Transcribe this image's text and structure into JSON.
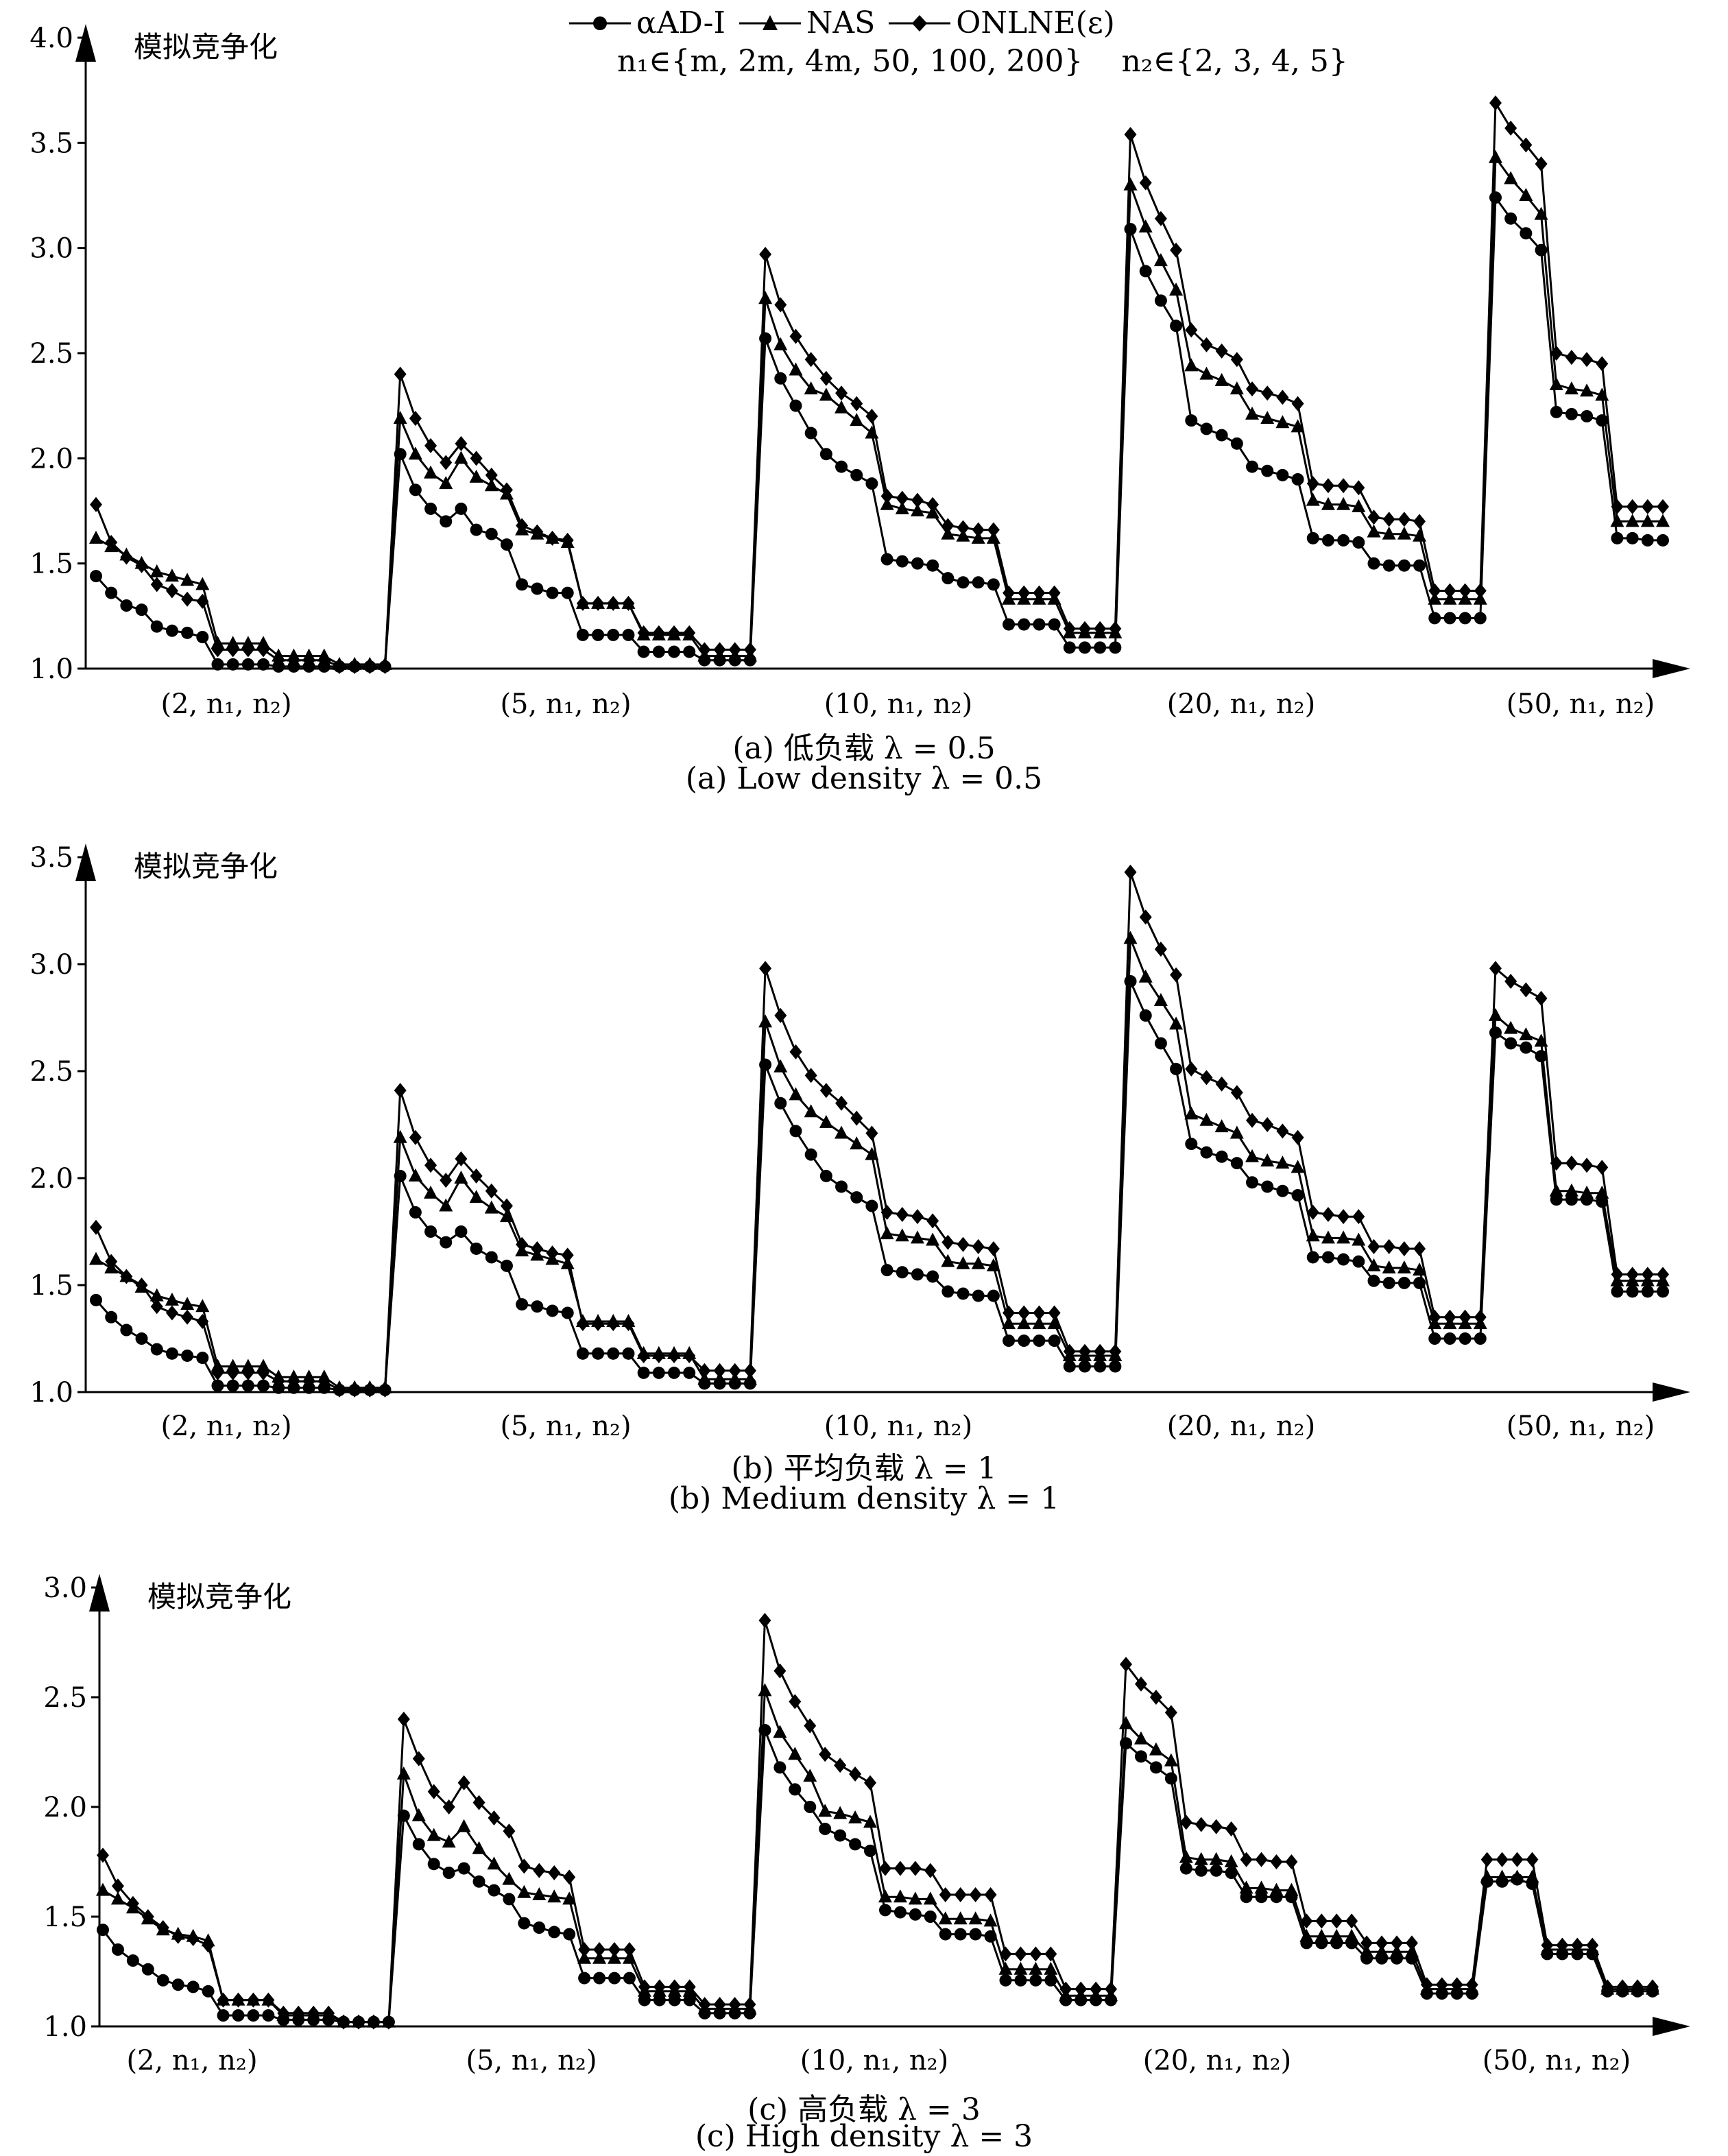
{
  "legend": {
    "items": [
      {
        "label": "αAD-I",
        "marker": "circle"
      },
      {
        "label": "NAS",
        "marker": "triangle"
      },
      {
        "label": "ONLNE(ε)",
        "marker": "diamond"
      }
    ],
    "n1_set": "n₁∈{m, 2m, 4m, 50, 100, 200}",
    "n2_set": "n₂∈{2, 3, 4, 5}"
  },
  "chart_data": [
    {
      "type": "line",
      "ylabel": "模拟竞争化",
      "ylim": [
        1.0,
        4.0
      ],
      "yticks": [
        "1.0",
        "1.5",
        "2.0",
        "2.5",
        "3.0",
        "3.5",
        "4.0"
      ],
      "group_labels": [
        "(2, n₁, n₂)",
        "(5, n₁, n₂)",
        "(10, n₁, n₂)",
        "(20, n₁, n₂)",
        "(50, n₁, n₂)"
      ],
      "caption_cn": "(a) 低负载 λ = 0.5",
      "caption_en": "(a) Low density λ = 0.5",
      "series": [
        {
          "name": "αAD-I",
          "values": [
            1.44,
            1.36,
            1.3,
            1.28,
            1.2,
            1.18,
            1.17,
            1.15,
            1.02,
            1.02,
            1.02,
            1.02,
            1.01,
            1.01,
            1.01,
            1.01,
            1.01,
            1.01,
            1.01,
            1.01,
            2.02,
            1.85,
            1.76,
            1.7,
            1.76,
            1.66,
            1.64,
            1.59,
            1.4,
            1.38,
            1.36,
            1.36,
            1.16,
            1.16,
            1.16,
            1.16,
            1.08,
            1.08,
            1.08,
            1.08,
            1.04,
            1.04,
            1.04,
            1.04,
            2.57,
            2.38,
            2.25,
            2.12,
            2.02,
            1.96,
            1.92,
            1.88,
            1.52,
            1.51,
            1.5,
            1.49,
            1.43,
            1.41,
            1.41,
            1.4,
            1.21,
            1.21,
            1.21,
            1.21,
            1.1,
            1.1,
            1.1,
            1.1,
            3.09,
            2.89,
            2.75,
            2.63,
            2.18,
            2.14,
            2.11,
            2.07,
            1.96,
            1.94,
            1.92,
            1.9,
            1.62,
            1.61,
            1.61,
            1.6,
            1.5,
            1.49,
            1.49,
            1.49,
            1.24,
            1.24,
            1.24,
            1.24,
            3.24,
            3.14,
            3.07,
            2.99,
            2.22,
            2.21,
            2.2,
            2.18,
            1.62,
            1.62,
            1.61,
            1.61
          ]
        },
        {
          "name": "NAS",
          "values": [
            1.62,
            1.58,
            1.54,
            1.5,
            1.46,
            1.44,
            1.42,
            1.4,
            1.12,
            1.12,
            1.12,
            1.12,
            1.06,
            1.06,
            1.06,
            1.06,
            1.02,
            1.02,
            1.02,
            1.02,
            2.19,
            2.02,
            1.93,
            1.88,
            2.0,
            1.91,
            1.87,
            1.83,
            1.66,
            1.64,
            1.62,
            1.6,
            1.31,
            1.31,
            1.31,
            1.31,
            1.16,
            1.16,
            1.16,
            1.16,
            1.06,
            1.06,
            1.06,
            1.06,
            2.76,
            2.54,
            2.42,
            2.33,
            2.3,
            2.24,
            2.18,
            2.12,
            1.78,
            1.76,
            1.75,
            1.74,
            1.64,
            1.63,
            1.62,
            1.62,
            1.33,
            1.33,
            1.33,
            1.33,
            1.17,
            1.17,
            1.17,
            1.17,
            3.3,
            3.1,
            2.94,
            2.8,
            2.44,
            2.4,
            2.37,
            2.33,
            2.21,
            2.19,
            2.17,
            2.15,
            1.8,
            1.78,
            1.78,
            1.77,
            1.65,
            1.64,
            1.64,
            1.63,
            1.33,
            1.33,
            1.33,
            1.33,
            3.43,
            3.33,
            3.25,
            3.16,
            2.35,
            2.33,
            2.32,
            2.3,
            1.7,
            1.7,
            1.7,
            1.7
          ]
        },
        {
          "name": "ONLNE(ε)",
          "values": [
            1.78,
            1.6,
            1.53,
            1.49,
            1.4,
            1.37,
            1.33,
            1.32,
            1.09,
            1.09,
            1.09,
            1.09,
            1.04,
            1.04,
            1.04,
            1.04,
            1.01,
            1.01,
            1.01,
            1.01,
            2.4,
            2.19,
            2.06,
            1.98,
            2.07,
            2.0,
            1.92,
            1.85,
            1.68,
            1.65,
            1.62,
            1.61,
            1.31,
            1.31,
            1.31,
            1.31,
            1.17,
            1.17,
            1.17,
            1.17,
            1.09,
            1.09,
            1.09,
            1.09,
            2.97,
            2.73,
            2.58,
            2.47,
            2.38,
            2.31,
            2.26,
            2.2,
            1.82,
            1.81,
            1.8,
            1.78,
            1.68,
            1.67,
            1.66,
            1.66,
            1.36,
            1.36,
            1.36,
            1.36,
            1.19,
            1.19,
            1.19,
            1.19,
            3.54,
            3.31,
            3.14,
            2.99,
            2.61,
            2.54,
            2.51,
            2.47,
            2.33,
            2.31,
            2.29,
            2.26,
            1.88,
            1.87,
            1.87,
            1.86,
            1.72,
            1.71,
            1.71,
            1.7,
            1.37,
            1.37,
            1.37,
            1.37,
            3.69,
            3.57,
            3.49,
            3.4,
            2.5,
            2.48,
            2.47,
            2.45,
            1.77,
            1.77,
            1.77,
            1.77
          ]
        }
      ]
    },
    {
      "type": "line",
      "ylabel": "模拟竞争化",
      "ylim": [
        1.0,
        3.5
      ],
      "yticks": [
        "1.0",
        "1.5",
        "2.0",
        "2.5",
        "3.0",
        "3.5"
      ],
      "group_labels": [
        "(2, n₁, n₂)",
        "(5, n₁, n₂)",
        "(10, n₁, n₂)",
        "(20, n₁, n₂)",
        "(50, n₁, n₂)"
      ],
      "caption_cn": "(b) 平均负载 λ = 1",
      "caption_en": "(b) Medium density λ = 1",
      "series": [
        {
          "name": "αAD-I",
          "values": [
            1.43,
            1.35,
            1.29,
            1.25,
            1.2,
            1.18,
            1.17,
            1.16,
            1.03,
            1.03,
            1.03,
            1.03,
            1.02,
            1.02,
            1.02,
            1.02,
            1.01,
            1.01,
            1.01,
            1.01,
            2.01,
            1.84,
            1.75,
            1.7,
            1.75,
            1.67,
            1.63,
            1.59,
            1.41,
            1.4,
            1.38,
            1.37,
            1.18,
            1.18,
            1.18,
            1.18,
            1.09,
            1.09,
            1.09,
            1.09,
            1.04,
            1.04,
            1.04,
            1.04,
            2.53,
            2.35,
            2.22,
            2.11,
            2.01,
            1.96,
            1.91,
            1.87,
            1.57,
            1.56,
            1.55,
            1.54,
            1.47,
            1.46,
            1.45,
            1.45,
            1.24,
            1.24,
            1.24,
            1.24,
            1.12,
            1.12,
            1.12,
            1.12,
            2.92,
            2.76,
            2.63,
            2.51,
            2.16,
            2.12,
            2.1,
            2.07,
            1.98,
            1.96,
            1.94,
            1.92,
            1.63,
            1.63,
            1.62,
            1.61,
            1.52,
            1.51,
            1.51,
            1.51,
            1.25,
            1.25,
            1.25,
            1.25,
            2.68,
            2.63,
            2.61,
            2.57,
            1.9,
            1.9,
            1.9,
            1.89,
            1.47,
            1.47,
            1.47,
            1.47
          ]
        },
        {
          "name": "NAS",
          "values": [
            1.62,
            1.58,
            1.54,
            1.49,
            1.45,
            1.43,
            1.41,
            1.4,
            1.12,
            1.12,
            1.12,
            1.12,
            1.07,
            1.07,
            1.07,
            1.07,
            1.02,
            1.02,
            1.02,
            1.02,
            2.19,
            2.01,
            1.93,
            1.87,
            2.0,
            1.91,
            1.86,
            1.82,
            1.66,
            1.64,
            1.62,
            1.6,
            1.33,
            1.33,
            1.33,
            1.33,
            1.18,
            1.18,
            1.18,
            1.18,
            1.06,
            1.06,
            1.06,
            1.06,
            2.73,
            2.52,
            2.39,
            2.31,
            2.26,
            2.21,
            2.16,
            2.11,
            1.74,
            1.73,
            1.72,
            1.71,
            1.61,
            1.6,
            1.6,
            1.59,
            1.32,
            1.32,
            1.32,
            1.32,
            1.17,
            1.17,
            1.17,
            1.17,
            3.12,
            2.94,
            2.83,
            2.72,
            2.3,
            2.27,
            2.24,
            2.21,
            2.1,
            2.08,
            2.07,
            2.05,
            1.73,
            1.72,
            1.72,
            1.71,
            1.59,
            1.58,
            1.58,
            1.57,
            1.32,
            1.32,
            1.32,
            1.32,
            2.76,
            2.7,
            2.67,
            2.64,
            1.94,
            1.94,
            1.93,
            1.93,
            1.52,
            1.52,
            1.52,
            1.52
          ]
        },
        {
          "name": "ONLNE(ε)",
          "values": [
            1.77,
            1.61,
            1.54,
            1.5,
            1.4,
            1.37,
            1.35,
            1.33,
            1.09,
            1.09,
            1.09,
            1.09,
            1.05,
            1.05,
            1.05,
            1.05,
            1.01,
            1.01,
            1.01,
            1.01,
            2.41,
            2.19,
            2.06,
            1.99,
            2.09,
            2.01,
            1.94,
            1.87,
            1.69,
            1.67,
            1.65,
            1.64,
            1.32,
            1.32,
            1.32,
            1.32,
            1.17,
            1.17,
            1.17,
            1.17,
            1.1,
            1.1,
            1.1,
            1.1,
            2.98,
            2.76,
            2.59,
            2.48,
            2.41,
            2.35,
            2.28,
            2.21,
            1.84,
            1.83,
            1.82,
            1.8,
            1.7,
            1.69,
            1.68,
            1.67,
            1.37,
            1.37,
            1.37,
            1.37,
            1.19,
            1.19,
            1.19,
            1.19,
            3.43,
            3.22,
            3.07,
            2.95,
            2.51,
            2.47,
            2.44,
            2.4,
            2.27,
            2.25,
            2.22,
            2.19,
            1.84,
            1.83,
            1.82,
            1.82,
            1.68,
            1.68,
            1.67,
            1.67,
            1.35,
            1.35,
            1.35,
            1.35,
            2.98,
            2.92,
            2.88,
            2.84,
            2.07,
            2.07,
            2.06,
            2.05,
            1.55,
            1.55,
            1.55,
            1.55
          ]
        }
      ]
    },
    {
      "type": "line",
      "ylabel": "模拟竞争化",
      "ylim": [
        1.0,
        3.0
      ],
      "yticks": [
        "1.0",
        "1.5",
        "2.0",
        "2.5",
        "3.0"
      ],
      "group_labels": [
        "(2, n₁, n₂)",
        "(5, n₁, n₂)",
        "(10, n₁, n₂)",
        "(20, n₁, n₂)",
        "(50, n₁, n₂)"
      ],
      "caption_cn": "(c) 高负载 λ = 3",
      "caption_en": "(c) High density λ = 3",
      "series": [
        {
          "name": "αAD-I",
          "values": [
            1.44,
            1.35,
            1.3,
            1.26,
            1.21,
            1.19,
            1.18,
            1.16,
            1.05,
            1.05,
            1.05,
            1.05,
            1.03,
            1.03,
            1.03,
            1.03,
            1.02,
            1.02,
            1.02,
            1.02,
            1.96,
            1.83,
            1.74,
            1.7,
            1.72,
            1.66,
            1.62,
            1.58,
            1.47,
            1.45,
            1.43,
            1.42,
            1.22,
            1.22,
            1.22,
            1.22,
            1.12,
            1.12,
            1.12,
            1.12,
            1.06,
            1.06,
            1.06,
            1.06,
            2.35,
            2.18,
            2.08,
            2.0,
            1.9,
            1.87,
            1.83,
            1.8,
            1.53,
            1.52,
            1.51,
            1.5,
            1.42,
            1.42,
            1.42,
            1.41,
            1.21,
            1.21,
            1.21,
            1.21,
            1.12,
            1.12,
            1.12,
            1.12,
            2.29,
            2.23,
            2.18,
            2.13,
            1.72,
            1.71,
            1.71,
            1.7,
            1.59,
            1.59,
            1.59,
            1.59,
            1.38,
            1.38,
            1.38,
            1.38,
            1.31,
            1.31,
            1.31,
            1.31,
            1.15,
            1.15,
            1.15,
            1.15,
            1.66,
            1.66,
            1.67,
            1.65,
            1.33,
            1.33,
            1.33,
            1.33,
            1.16,
            1.16,
            1.16,
            1.16
          ]
        },
        {
          "name": "NAS",
          "values": [
            1.62,
            1.58,
            1.54,
            1.49,
            1.44,
            1.42,
            1.41,
            1.39,
            1.12,
            1.12,
            1.12,
            1.12,
            1.05,
            1.05,
            1.05,
            1.05,
            1.02,
            1.02,
            1.02,
            1.02,
            2.15,
            1.96,
            1.87,
            1.84,
            1.91,
            1.81,
            1.74,
            1.67,
            1.61,
            1.6,
            1.59,
            1.58,
            1.31,
            1.31,
            1.31,
            1.31,
            1.16,
            1.16,
            1.16,
            1.16,
            1.08,
            1.08,
            1.08,
            1.08,
            2.53,
            2.34,
            2.24,
            2.14,
            1.98,
            1.97,
            1.95,
            1.93,
            1.59,
            1.59,
            1.58,
            1.58,
            1.49,
            1.49,
            1.49,
            1.48,
            1.26,
            1.26,
            1.26,
            1.26,
            1.14,
            1.14,
            1.14,
            1.14,
            2.38,
            2.31,
            2.26,
            2.21,
            1.77,
            1.76,
            1.76,
            1.75,
            1.63,
            1.63,
            1.62,
            1.62,
            1.41,
            1.41,
            1.41,
            1.41,
            1.34,
            1.34,
            1.34,
            1.34,
            1.17,
            1.17,
            1.17,
            1.17,
            1.68,
            1.68,
            1.68,
            1.68,
            1.35,
            1.35,
            1.35,
            1.35,
            1.17,
            1.17,
            1.17,
            1.17
          ]
        },
        {
          "name": "ONLNE(ε)",
          "values": [
            1.78,
            1.64,
            1.56,
            1.5,
            1.45,
            1.41,
            1.4,
            1.37,
            1.12,
            1.12,
            1.12,
            1.12,
            1.06,
            1.06,
            1.06,
            1.06,
            1.02,
            1.02,
            1.02,
            1.02,
            2.4,
            2.22,
            2.07,
            2.0,
            2.11,
            2.02,
            1.95,
            1.89,
            1.73,
            1.71,
            1.7,
            1.68,
            1.35,
            1.35,
            1.35,
            1.35,
            1.18,
            1.18,
            1.18,
            1.18,
            1.1,
            1.1,
            1.1,
            1.1,
            2.85,
            2.62,
            2.48,
            2.37,
            2.24,
            2.19,
            2.15,
            2.11,
            1.72,
            1.72,
            1.72,
            1.71,
            1.6,
            1.6,
            1.6,
            1.6,
            1.33,
            1.33,
            1.33,
            1.33,
            1.17,
            1.17,
            1.17,
            1.17,
            2.65,
            2.56,
            2.5,
            2.43,
            1.93,
            1.92,
            1.91,
            1.9,
            1.76,
            1.76,
            1.75,
            1.75,
            1.48,
            1.48,
            1.48,
            1.48,
            1.38,
            1.38,
            1.38,
            1.38,
            1.19,
            1.19,
            1.19,
            1.19,
            1.76,
            1.76,
            1.76,
            1.76,
            1.37,
            1.37,
            1.37,
            1.37,
            1.18,
            1.18,
            1.18,
            1.18
          ]
        }
      ]
    }
  ]
}
